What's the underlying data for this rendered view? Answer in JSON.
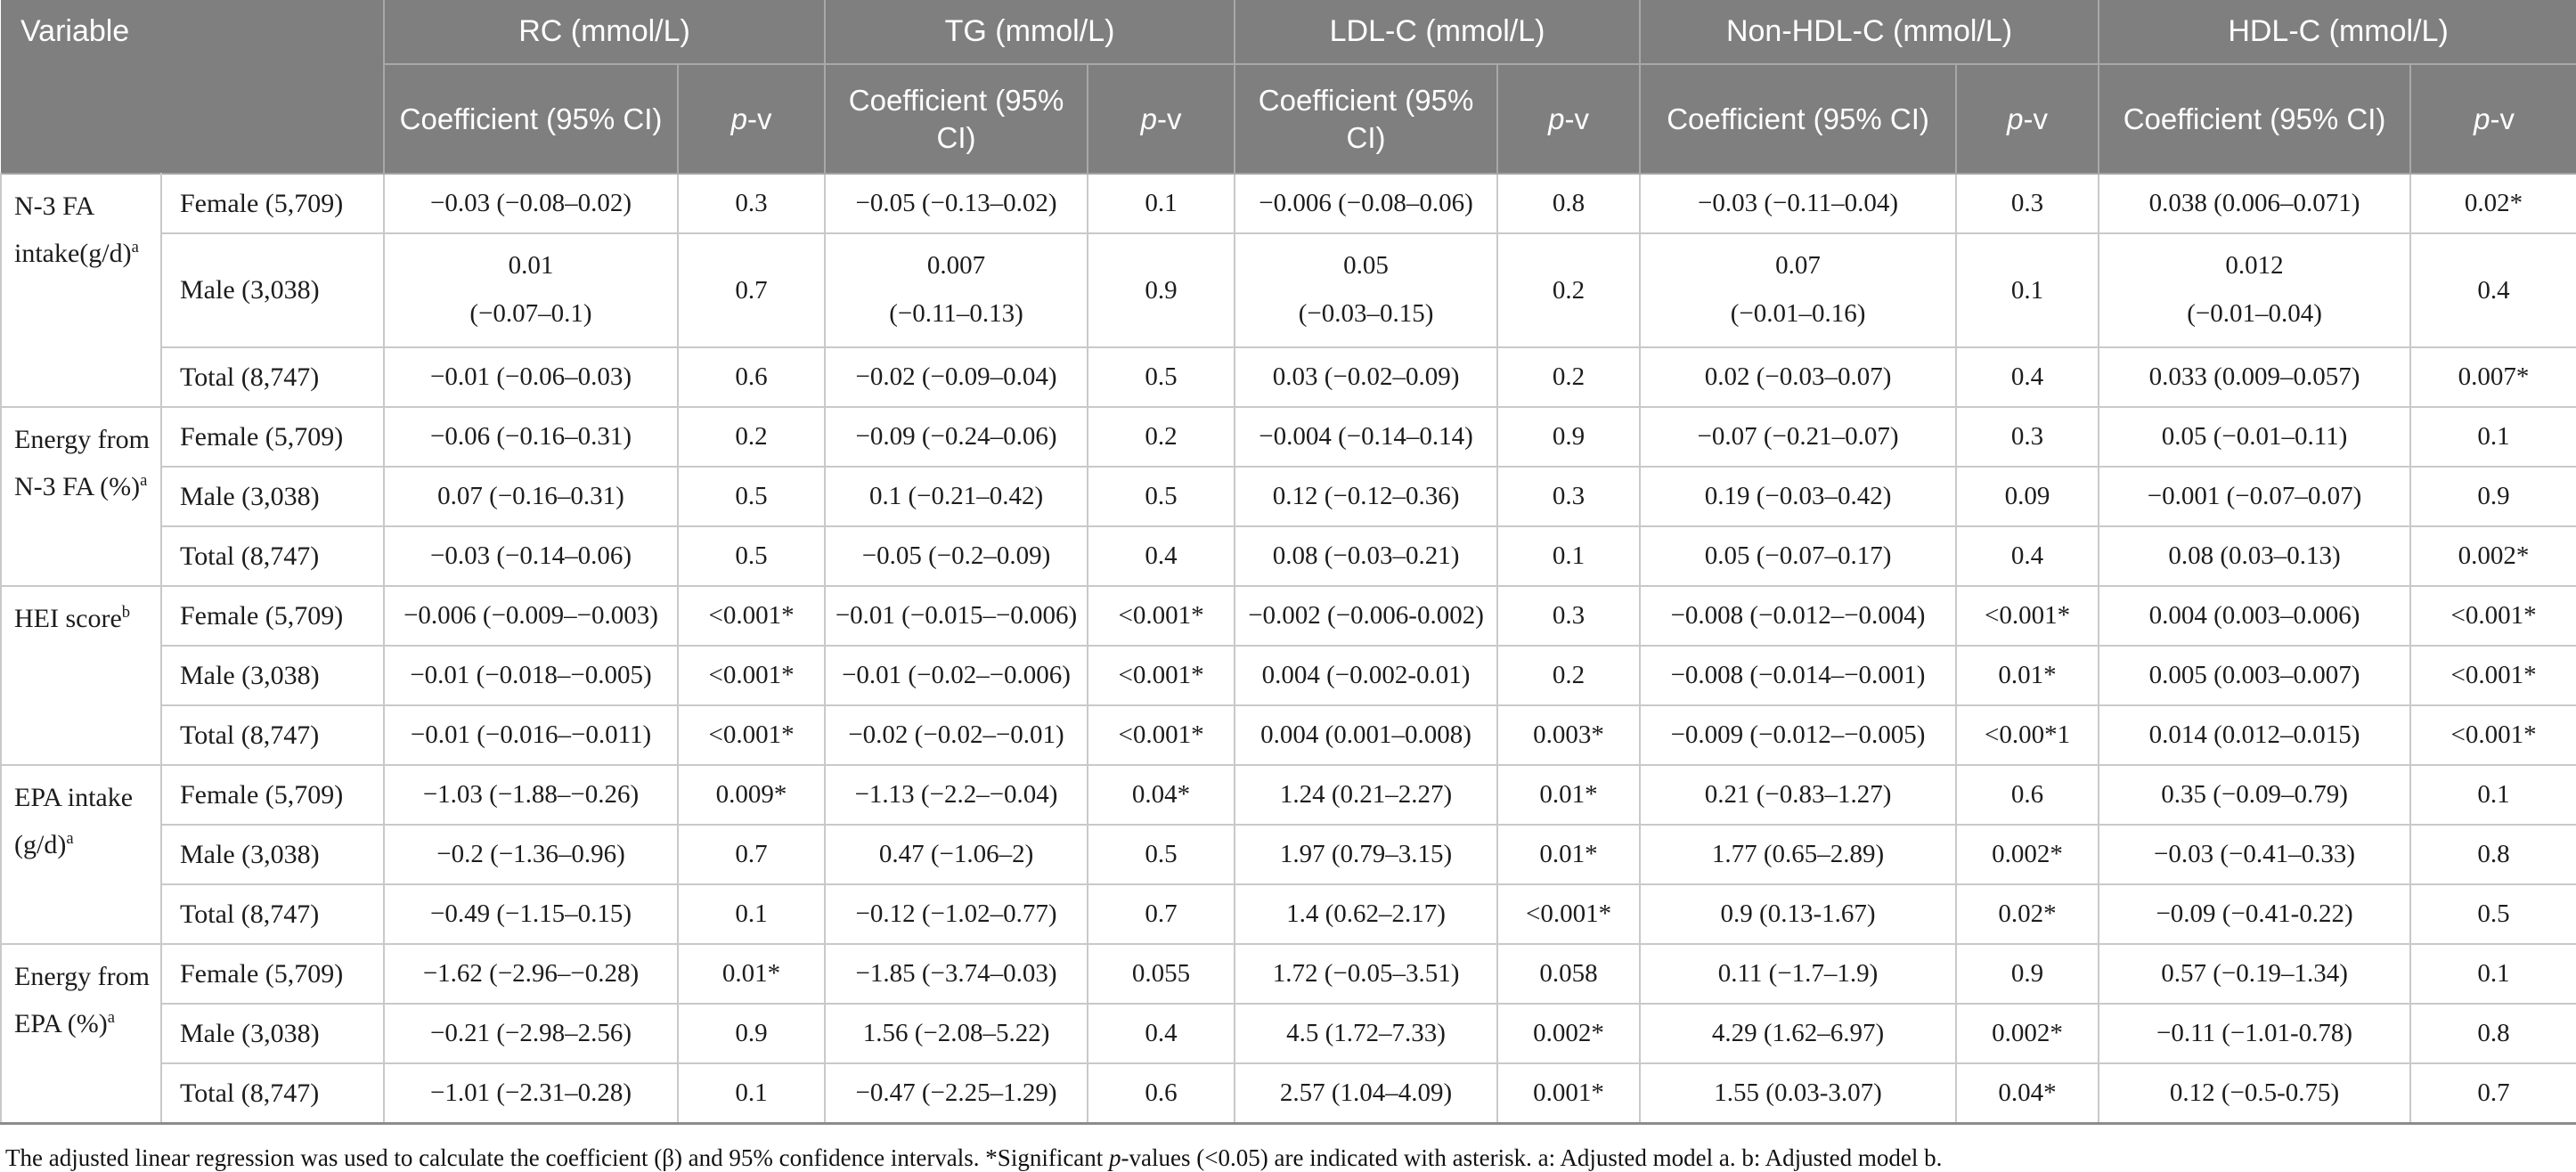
{
  "colors": {
    "header_bg": "#7f7f7f",
    "header_text": "#ffffff",
    "body_text": "#1c1c1c",
    "grid_light": "#c9c9c9",
    "grid_dark": "#a3a3a3",
    "header_grid": "#a8a8a8"
  },
  "header": {
    "variable_label": "Variable",
    "coef_label": "Coefficient (95% CI)",
    "p_label": "p",
    "v_label": "-v",
    "groups": [
      "RC (mmol/L)",
      "TG (mmol/L)",
      "LDL-C (mmol/L)",
      "Non-HDL-C (mmol/L)",
      "HDL-C (mmol/L)"
    ]
  },
  "table": {
    "groups": [
      {
        "variable": "N-3 FA intake(g/d)",
        "sup": "a",
        "rows": [
          {
            "label": "Female (5,709)",
            "cells": [
              "−0.03 (−0.08–0.02)",
              "0.3",
              "−0.05 (−0.13–0.02)",
              "0.1",
              "−0.006 (−0.08–0.06)",
              "0.8",
              "−0.03 (−0.11–0.04)",
              "0.3",
              "0.038 (0.006–0.071)",
              "0.02*"
            ]
          },
          {
            "label": "Male (3,038)",
            "cells": [
              "0.01\n(−0.07–0.1)",
              "0.7",
              "0.007\n(−0.11–0.13)",
              "0.9",
              "0.05\n(−0.03–0.15)",
              "0.2",
              "0.07\n(−0.01–0.16)",
              "0.1",
              "0.012\n(−0.01–0.04)",
              "0.4"
            ]
          },
          {
            "label": "Total (8,747)",
            "cells": [
              "−0.01 (−0.06–0.03)",
              "0.6",
              "−0.02 (−0.09–0.04)",
              "0.5",
              "0.03 (−0.02–0.09)",
              "0.2",
              "0.02 (−0.03–0.07)",
              "0.4",
              "0.033 (0.009–0.057)",
              "0.007*"
            ]
          }
        ]
      },
      {
        "variable": "Energy from N-3 FA (%)",
        "sup": "a",
        "rows": [
          {
            "label": "Female (5,709)",
            "cells": [
              "−0.06 (−0.16–0.31)",
              "0.2",
              "−0.09 (−0.24–0.06)",
              "0.2",
              "−0.004 (−0.14–0.14)",
              "0.9",
              "−0.07 (−0.21–0.07)",
              "0.3",
              "0.05 (−0.01–0.11)",
              "0.1"
            ]
          },
          {
            "label": "Male (3,038)",
            "cells": [
              "0.07 (−0.16–0.31)",
              "0.5",
              "0.1 (−0.21–0.42)",
              "0.5",
              "0.12 (−0.12–0.36)",
              "0.3",
              "0.19 (−0.03–0.42)",
              "0.09",
              "−0.001 (−0.07–0.07)",
              "0.9"
            ]
          },
          {
            "label": "Total (8,747)",
            "cells": [
              "−0.03 (−0.14–0.06)",
              "0.5",
              "−0.05 (−0.2–0.09)",
              "0.4",
              "0.08 (−0.03–0.21)",
              "0.1",
              "0.05 (−0.07–0.17)",
              "0.4",
              "0.08 (0.03–0.13)",
              "0.002*"
            ]
          }
        ]
      },
      {
        "variable": "HEI score",
        "sup": "b",
        "rows": [
          {
            "label": "Female (5,709)",
            "cells": [
              "−0.006 (−0.009–−0.003)",
              "<0.001*",
              "−0.01 (−0.015–−0.006)",
              "<0.001*",
              "−0.002 (−0.006-0.002)",
              "0.3",
              "−0.008 (−0.012–−0.004)",
              "<0.001*",
              "0.004 (0.003–0.006)",
              "<0.001*"
            ]
          },
          {
            "label": "Male (3,038)",
            "cells": [
              "−0.01 (−0.018–−0.005)",
              "<0.001*",
              "−0.01 (−0.02–−0.006)",
              "<0.001*",
              "0.004 (−0.002-0.01)",
              "0.2",
              "−0.008 (−0.014–−0.001)",
              "0.01*",
              "0.005 (0.003–0.007)",
              "<0.001*"
            ]
          },
          {
            "label": "Total (8,747)",
            "cells": [
              "−0.01 (−0.016–−0.011)",
              "<0.001*",
              "−0.02 (−0.02–−0.01)",
              "<0.001*",
              "0.004 (0.001–0.008)",
              "0.003*",
              "−0.009 (−0.012–−0.005)",
              "<0.00*1",
              "0.014 (0.012–0.015)",
              "<0.001*"
            ]
          }
        ]
      },
      {
        "variable": "EPA intake (g/d)",
        "sup": "a",
        "rows": [
          {
            "label": "Female (5,709)",
            "cells": [
              "−1.03 (−1.88–−0.26)",
              "0.009*",
              "−1.13 (−2.2–−0.04)",
              "0.04*",
              "1.24 (0.21–2.27)",
              "0.01*",
              "0.21 (−0.83–1.27)",
              "0.6",
              "0.35 (−0.09–0.79)",
              "0.1"
            ]
          },
          {
            "label": "Male (3,038)",
            "cells": [
              "−0.2 (−1.36–0.96)",
              "0.7",
              "0.47 (−1.06–2)",
              "0.5",
              "1.97 (0.79–3.15)",
              "0.01*",
              "1.77 (0.65–2.89)",
              "0.002*",
              "−0.03 (−0.41–0.33)",
              "0.8"
            ]
          },
          {
            "label": "Total (8,747)",
            "cells": [
              "−0.49 (−1.15–0.15)",
              "0.1",
              "−0.12 (−1.02–0.77)",
              "0.7",
              "1.4 (0.62–2.17)",
              "<0.001*",
              "0.9 (0.13-1.67)",
              "0.02*",
              "−0.09 (−0.41-0.22)",
              "0.5"
            ]
          }
        ]
      },
      {
        "variable": "Energy from EPA (%)",
        "sup": "a",
        "rows": [
          {
            "label": "Female (5,709)",
            "cells": [
              "−1.62 (−2.96–−0.28)",
              "0.01*",
              "−1.85 (−3.74–0.03)",
              "0.055",
              "1.72 (−0.05–3.51)",
              "0.058",
              "0.11 (−1.7–1.9)",
              "0.9",
              "0.57 (−0.19–1.34)",
              "0.1"
            ]
          },
          {
            "label": "Male (3,038)",
            "cells": [
              "−0.21 (−2.98–2.56)",
              "0.9",
              "1.56 (−2.08–5.22)",
              "0.4",
              "4.5 (1.72–7.33)",
              "0.002*",
              "4.29 (1.62–6.97)",
              "0.002*",
              "−0.11 (−1.01-0.78)",
              "0.8"
            ]
          },
          {
            "label": "Total (8,747)",
            "cells": [
              "−1.01 (−2.31–0.28)",
              "0.1",
              "−0.47 (−2.25–1.29)",
              "0.6",
              "2.57 (1.04–4.09)",
              "0.001*",
              "1.55 (0.03-3.07)",
              "0.04*",
              "0.12 (−0.5-0.75)",
              "0.7"
            ]
          }
        ]
      }
    ]
  },
  "footnote": {
    "part1": "The adjusted linear regression was used to calculate the coefficient (β) and 95% confidence intervals. *Significant ",
    "p_label": "p",
    "part2": "-values (<0.05) are indicated with asterisk. a: Adjusted model a. b: Adjusted model b."
  }
}
